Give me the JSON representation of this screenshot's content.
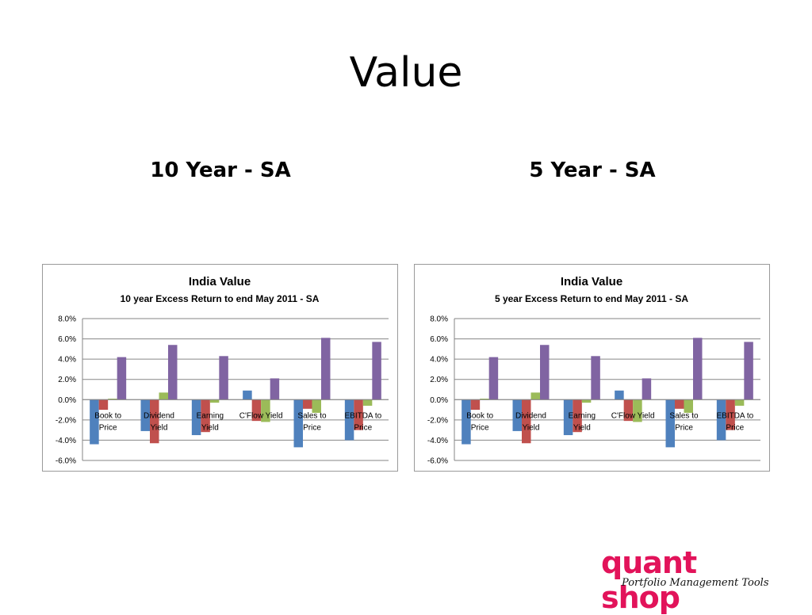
{
  "slide": {
    "title": "Value",
    "left_subtitle": "10 Year - SA",
    "right_subtitle": "5 Year - SA"
  },
  "logo": {
    "name": "quant shop",
    "tagline": "Portfolio Management Tools"
  },
  "colors": {
    "blue": "#4f81bd",
    "red": "#c0504d",
    "green": "#9bbb59",
    "purple": "#8064a2"
  },
  "chart_data": [
    {
      "type": "bar",
      "title": "India Value",
      "subtitle": "10 year Excess Return to end May 2011 - SA",
      "categories": [
        [
          "Book to",
          "Price"
        ],
        [
          "Dividend",
          "Yield"
        ],
        [
          "Earning",
          "Yield"
        ],
        [
          "C'Flow Yield"
        ],
        [
          "Sales to",
          "Price"
        ],
        [
          "EBITDA to",
          "Price"
        ]
      ],
      "series": [
        {
          "color": "#4f81bd",
          "values": [
            -4.4,
            -3.1,
            -3.5,
            0.9,
            -4.7,
            -4.0
          ]
        },
        {
          "color": "#c0504d",
          "values": [
            -1.0,
            -4.3,
            -3.2,
            -2.1,
            -0.9,
            -3.0
          ]
        },
        {
          "color": "#9bbb59",
          "values": [
            0.1,
            0.7,
            -0.3,
            -2.2,
            -1.3,
            -0.6
          ]
        },
        {
          "color": "#8064a2",
          "values": [
            4.2,
            5.4,
            4.3,
            2.1,
            6.1,
            5.7
          ]
        }
      ],
      "ylim": [
        -6.0,
        8.0
      ],
      "yticks": [
        "8.0%",
        "6.0%",
        "4.0%",
        "2.0%",
        "0.0%",
        "-2.0%",
        "-4.0%",
        "-6.0%"
      ],
      "grid": true,
      "legend": "none"
    },
    {
      "type": "bar",
      "title": "India Value",
      "subtitle": "5 year Excess Return to end May 2011 - SA",
      "categories": [
        [
          "Book to",
          "Price"
        ],
        [
          "Dividend",
          "Yield"
        ],
        [
          "Earning",
          "Yield"
        ],
        [
          "C'Flow Yield"
        ],
        [
          "Sales to",
          "Price"
        ],
        [
          "EBITDA to",
          "Price"
        ]
      ],
      "series": [
        {
          "color": "#4f81bd",
          "values": [
            -4.4,
            -3.1,
            -3.5,
            0.9,
            -4.7,
            -4.0
          ]
        },
        {
          "color": "#c0504d",
          "values": [
            -1.0,
            -4.3,
            -3.2,
            -2.1,
            -0.9,
            -3.0
          ]
        },
        {
          "color": "#9bbb59",
          "values": [
            0.1,
            0.7,
            -0.3,
            -2.2,
            -1.3,
            -0.6
          ]
        },
        {
          "color": "#8064a2",
          "values": [
            4.2,
            5.4,
            4.3,
            2.1,
            6.1,
            5.7
          ]
        }
      ],
      "ylim": [
        -6.0,
        8.0
      ],
      "yticks": [
        "8.0%",
        "6.0%",
        "4.0%",
        "2.0%",
        "0.0%",
        "-2.0%",
        "-4.0%",
        "-6.0%"
      ],
      "grid": true,
      "legend": "none"
    }
  ]
}
